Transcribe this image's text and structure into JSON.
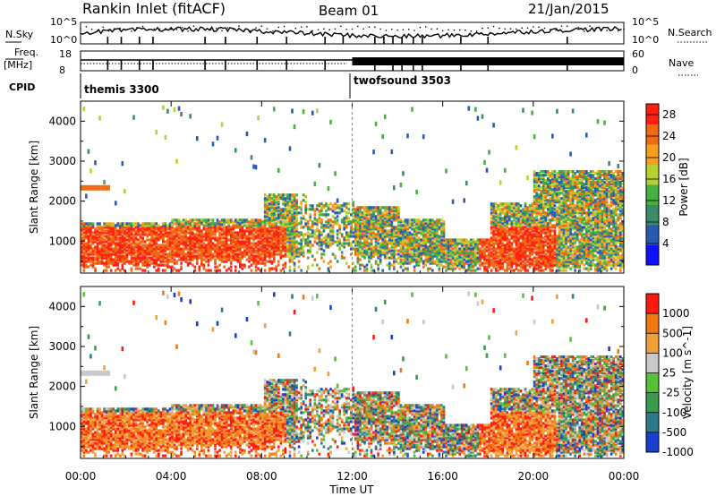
{
  "header": {
    "title": "Rankin Inlet (fitACF)",
    "beam": "Beam 01",
    "date": "21/Jan/2015"
  },
  "top_panels": {
    "nsky_label": "N.Sky",
    "nsky_ticks": [
      "10^5",
      "10^0"
    ],
    "nsearch_label": "N.Search",
    "nsearch_ticks": [
      "10^5",
      "10^0"
    ],
    "freq_label": "Freq.",
    "freq_unit": "[MHz]",
    "freq_ticks": [
      "18",
      "8"
    ],
    "nave_label": "Nave",
    "nave_ticks": [
      "60",
      "0"
    ],
    "cpid_label": "CPID",
    "cpid_modes": [
      "themis 3300",
      "twofsound 3503"
    ]
  },
  "chart_data": [
    {
      "type": "heatmap",
      "name": "power-panel",
      "ylabel": "Slant Range [km]",
      "ylim": [
        200,
        4500
      ],
      "yticks": [
        "4000",
        "3000",
        "2000",
        "1000"
      ],
      "ytick_values": [
        4000,
        3000,
        2000,
        1000
      ],
      "xlim": [
        0,
        24
      ],
      "colorbar": {
        "label": "Power [dB]",
        "ticks": [
          "28",
          "24",
          "20",
          "16",
          "12",
          "8",
          "4"
        ],
        "tick_values": [
          28,
          24,
          20,
          16,
          12,
          8,
          4
        ],
        "range": [
          0,
          30
        ],
        "colors": [
          "#1010ff",
          "#2a5ab0",
          "#3b8a6a",
          "#46b040",
          "#b8d030",
          "#f6a020",
          "#f06a10",
          "#ff2010"
        ]
      }
    },
    {
      "type": "heatmap",
      "name": "velocity-panel",
      "ylabel": "Slant Range [km]",
      "ylim": [
        200,
        4500
      ],
      "yticks": [
        "4000",
        "3000",
        "2000",
        "1000"
      ],
      "ytick_values": [
        4000,
        3000,
        2000,
        1000
      ],
      "xlim": [
        0,
        24
      ],
      "xlabel": "Time UT",
      "xticks": [
        "00:00",
        "04:00",
        "08:00",
        "12:00",
        "16:00",
        "20:00",
        "00:00"
      ],
      "xtick_values": [
        0,
        4,
        8,
        12,
        16,
        20,
        24
      ],
      "colorbar": {
        "label": "Velocity [m s^-1]",
        "ticks": [
          "1000",
          "500",
          "100",
          "25",
          "-25",
          "-100",
          "-500",
          "-1000"
        ],
        "colors": [
          "#1a3fd0",
          "#2f7a8a",
          "#3a9a50",
          "#56c036",
          "#c8c8c8",
          "#f0a038",
          "#f07a10",
          "#ff1a10"
        ]
      }
    }
  ]
}
